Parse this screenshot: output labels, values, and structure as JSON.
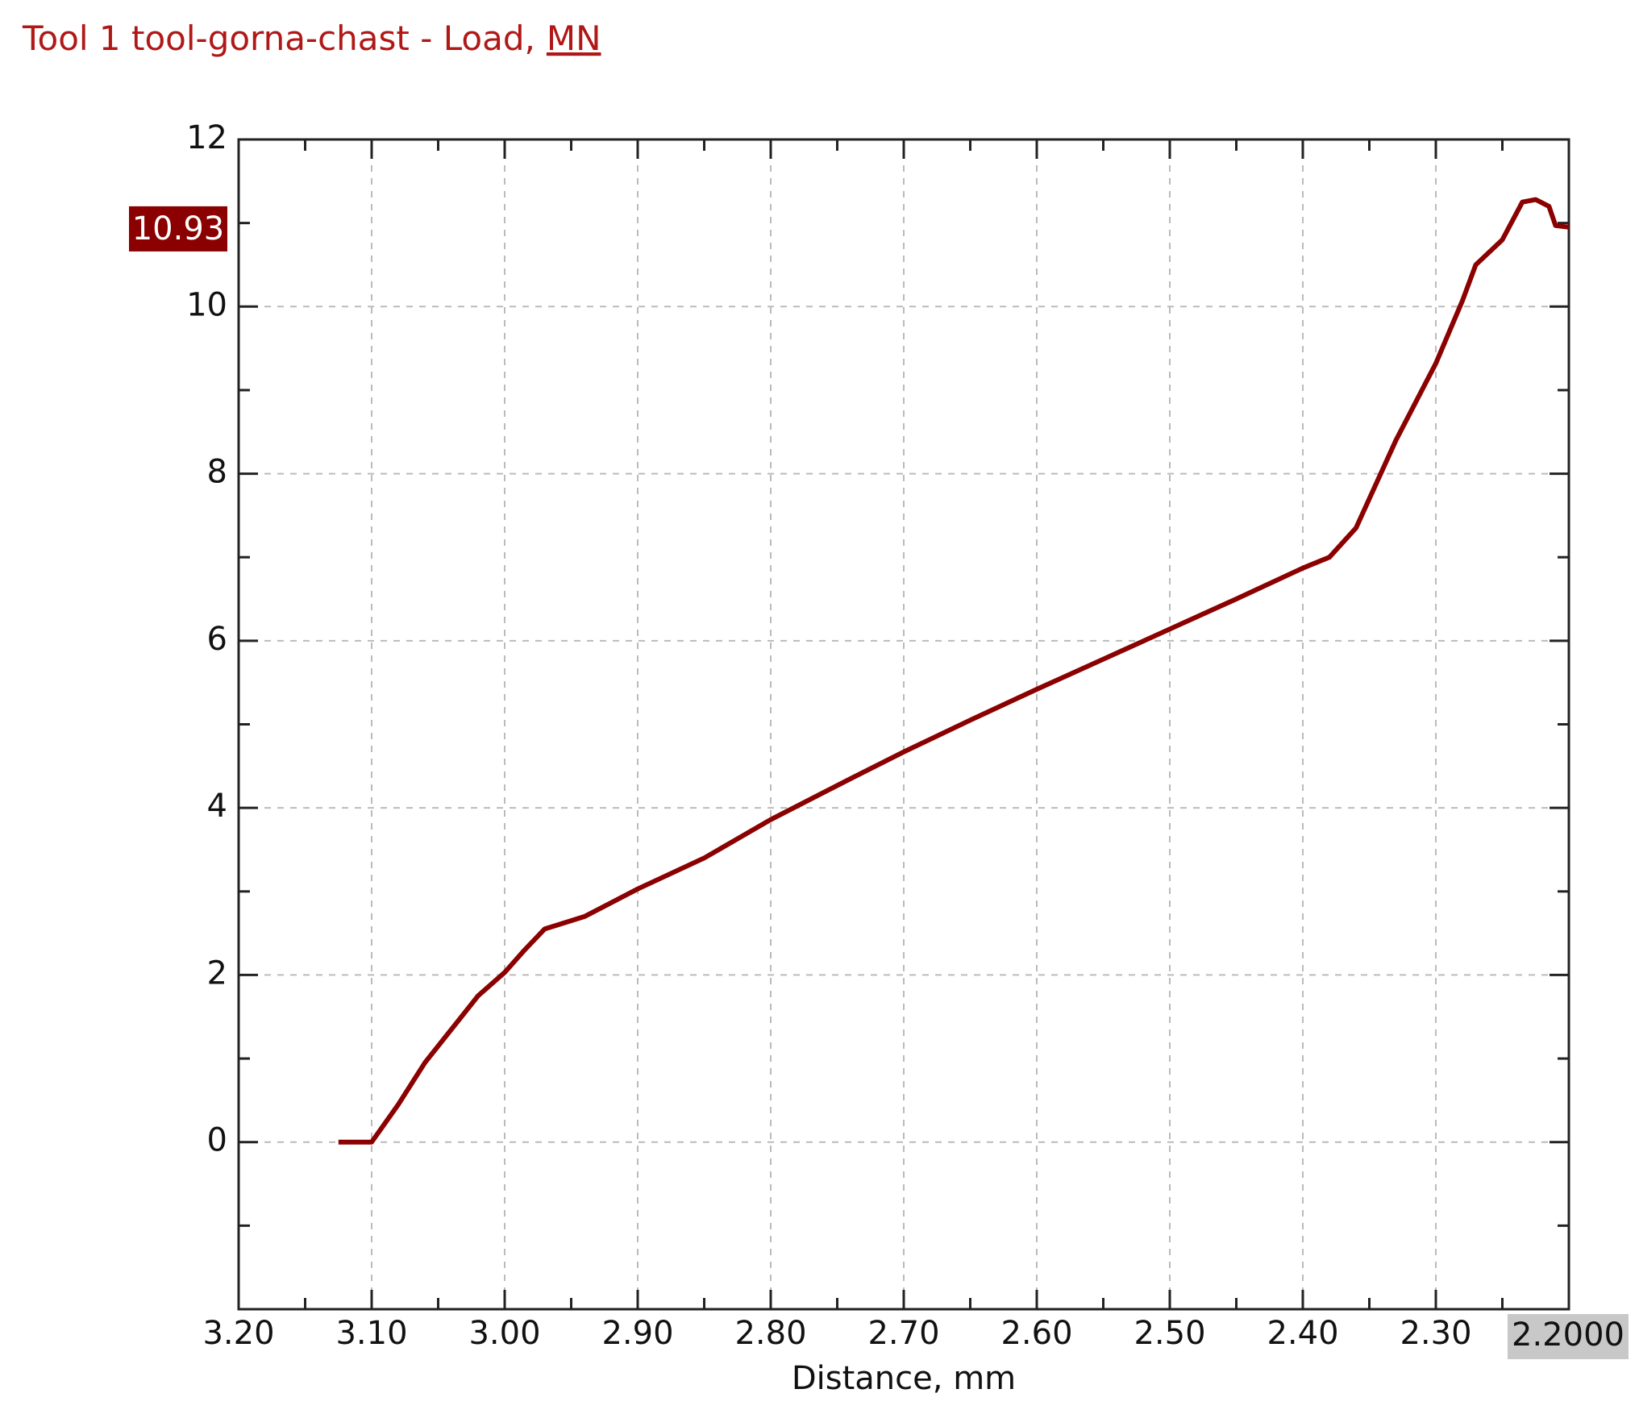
{
  "chart_data": {
    "type": "line",
    "title": "Tool 1 tool-gorna-chast - Load,",
    "title_unit": "MN",
    "x_label": "Distance, mm",
    "x": [
      3.125,
      3.1,
      3.08,
      3.06,
      3.04,
      3.02,
      3.0,
      2.985,
      2.97,
      2.94,
      2.9,
      2.85,
      2.8,
      2.74,
      2.7,
      2.65,
      2.6,
      2.55,
      2.5,
      2.45,
      2.4,
      2.38,
      2.36,
      2.33,
      2.3,
      2.28,
      2.27,
      2.25,
      2.235,
      2.225,
      2.215,
      2.21,
      2.2
    ],
    "values": [
      0,
      0,
      0.45,
      0.95,
      1.35,
      1.75,
      2.03,
      2.3,
      2.55,
      2.7,
      3.03,
      3.4,
      3.86,
      4.35,
      4.67,
      5.05,
      5.42,
      5.78,
      6.14,
      6.5,
      6.87,
      7.0,
      7.35,
      8.4,
      9.32,
      10.07,
      10.5,
      10.8,
      11.25,
      11.28,
      11.2,
      10.97,
      10.95
    ],
    "color": "#8b0000",
    "xlim": [
      3.2,
      2.2
    ],
    "ylim": [
      -2,
      12
    ],
    "xticks": [
      {
        "value": 3.2,
        "label": "3.20"
      },
      {
        "value": 3.1,
        "label": "3.10"
      },
      {
        "value": 3.0,
        "label": "3.00"
      },
      {
        "value": 2.9,
        "label": "2.90"
      },
      {
        "value": 2.8,
        "label": "2.80"
      },
      {
        "value": 2.7,
        "label": "2.70"
      },
      {
        "value": 2.6,
        "label": "2.60"
      },
      {
        "value": 2.5,
        "label": "2.50"
      },
      {
        "value": 2.4,
        "label": "2.40"
      },
      {
        "value": 2.3,
        "label": "2.30"
      }
    ],
    "xminor": [
      3.15,
      3.05,
      2.95,
      2.85,
      2.75,
      2.65,
      2.55,
      2.45,
      2.35,
      2.25
    ],
    "yticks": [
      0,
      2,
      4,
      6,
      8,
      10,
      12
    ],
    "yminor": [
      -1,
      1,
      3,
      5,
      7,
      9,
      11
    ],
    "grid": true,
    "cursor": {
      "x": {
        "value": 2.2,
        "label": "2.2000"
      },
      "y": {
        "value": 10.93,
        "label": "10.93"
      }
    }
  }
}
